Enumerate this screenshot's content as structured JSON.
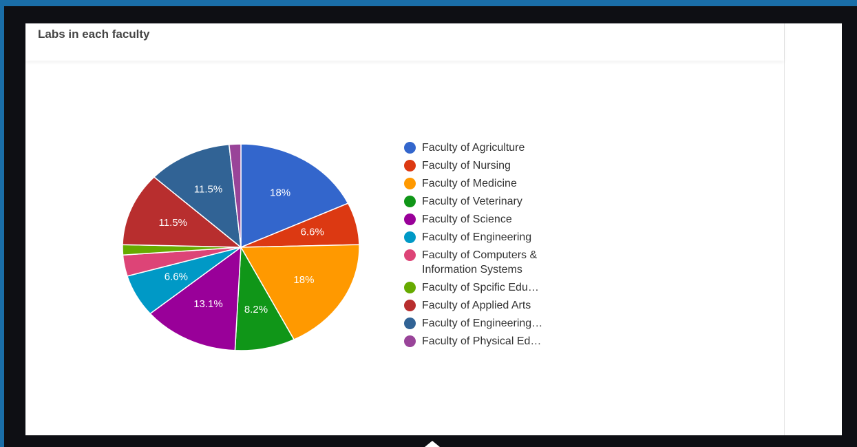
{
  "chart_data": {
    "type": "pie",
    "title": "Labs in each faculty",
    "categories": [
      "Faculty of Agriculture",
      "Faculty of Nursing",
      "Faculty of Medicine",
      "Faculty of Veterinary",
      "Faculty of Science",
      "Faculty of Engineering",
      "Faculty of Computers & Information Systems",
      "Faculty of Spcific Edu…",
      "Faculty of Applied Arts",
      "Faculty of Engineering…",
      "Faculty of Physical Ed…"
    ],
    "values": [
      18,
      6.6,
      18,
      8.2,
      13.1,
      6.6,
      3.3,
      1.6,
      11.5,
      11.5,
      1.6
    ],
    "value_labels": [
      "18%",
      "6.6%",
      "18%",
      "8.2%",
      "13.1%",
      "6.6%",
      null,
      null,
      "11.5%",
      "11.5%",
      null
    ],
    "colors": [
      "#3366cc",
      "#dc3912",
      "#ff9900",
      "#109618",
      "#990099",
      "#0099c6",
      "#dd4477",
      "#66aa00",
      "#b82e2e",
      "#316395",
      "#994499"
    ],
    "legend": "right"
  }
}
